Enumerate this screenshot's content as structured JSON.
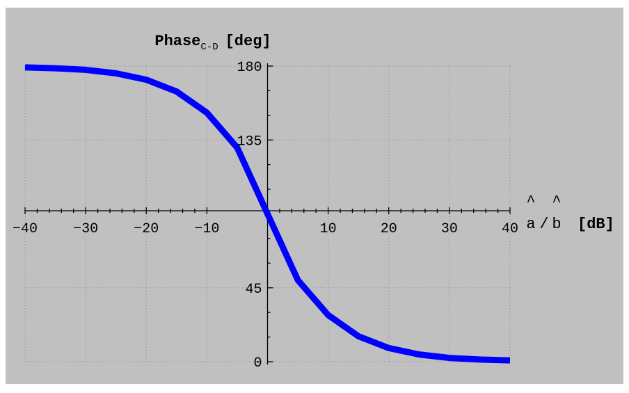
{
  "chart_data": {
    "type": "line",
    "title": {
      "main": "Phase",
      "subscript": "C-D",
      "suffix": "[deg]"
    },
    "xlabel": {
      "a": "a",
      "hat": "^",
      "slash": "/",
      "b": "b",
      "unit": "[dB]"
    },
    "xlim": [
      -40,
      40
    ],
    "ylim": [
      0,
      180
    ],
    "x_ticks": [
      -40,
      -30,
      -20,
      -10,
      10,
      20,
      30,
      40
    ],
    "y_ticks": [
      0,
      45,
      135,
      180
    ],
    "grid": true,
    "series": [
      {
        "color": "#0000ff",
        "x": [
          -40,
          -35,
          -30,
          -25,
          -20,
          -15,
          -10,
          -5,
          0,
          5,
          10,
          15,
          20,
          25,
          30,
          35,
          40
        ],
        "y": [
          179.2,
          178.7,
          177.7,
          175.6,
          171.7,
          164.5,
          151.6,
          130.3,
          90,
          49.7,
          28.4,
          15.5,
          8.3,
          4.4,
          2.3,
          1.3,
          0.8
        ]
      }
    ]
  }
}
